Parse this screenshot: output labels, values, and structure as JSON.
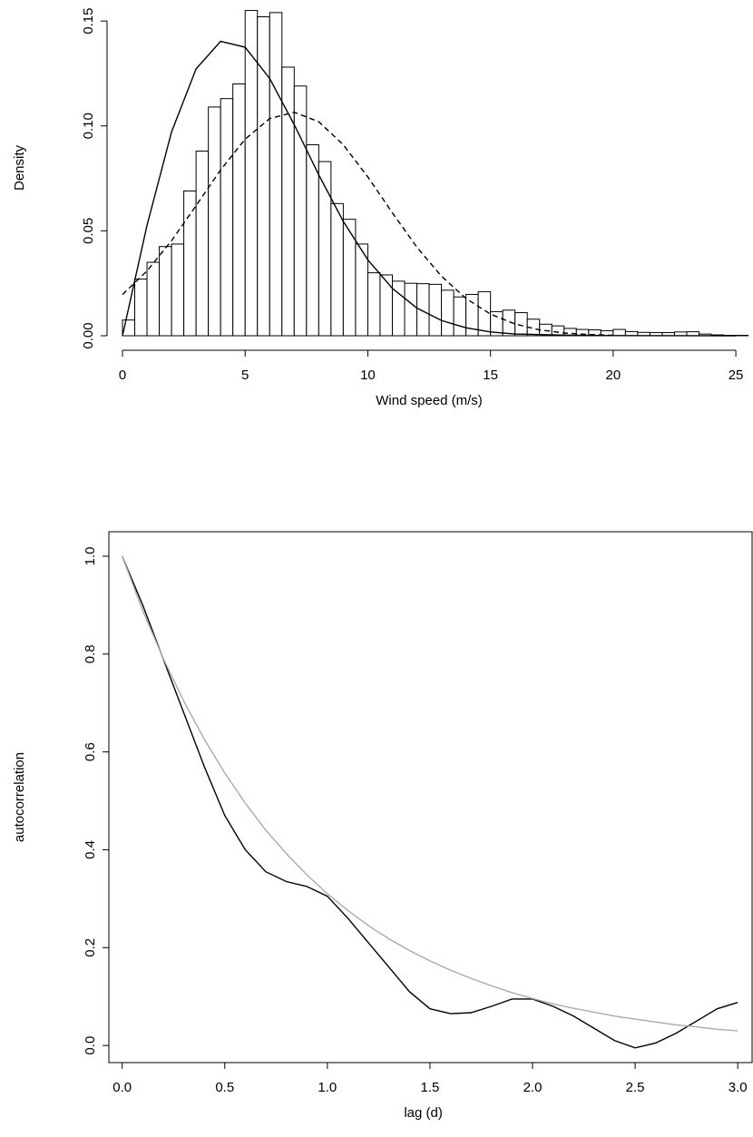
{
  "chart_data": [
    {
      "type": "histogram",
      "xlabel": "Wind speed (m/s)",
      "ylabel": "Density",
      "bins": [
        0,
        0.5,
        1,
        1.5,
        2,
        2.5,
        3,
        3.5,
        4,
        4.5,
        5,
        5.5,
        6,
        6.5,
        7,
        7.5,
        8,
        8.5,
        9,
        9.5,
        10,
        10.5,
        11,
        11.5,
        12,
        12.5,
        13,
        13.5,
        14,
        14.5,
        15,
        15.5,
        16,
        16.5,
        17,
        17.5,
        18,
        18.5,
        19,
        19.5,
        20,
        20.5,
        21,
        21.5,
        22,
        22.5,
        23,
        23.5,
        24,
        24.5,
        25,
        25.5
      ],
      "values": [
        0.0075,
        0.027,
        0.035,
        0.0425,
        0.0437,
        0.069,
        0.088,
        0.109,
        0.113,
        0.12,
        0.155,
        0.152,
        0.154,
        0.128,
        0.119,
        0.091,
        0.083,
        0.063,
        0.0555,
        0.0437,
        0.03,
        0.029,
        0.026,
        0.025,
        0.0248,
        0.0245,
        0.0217,
        0.0185,
        0.0197,
        0.021,
        0.0115,
        0.0122,
        0.011,
        0.0079,
        0.0055,
        0.0047,
        0.0035,
        0.003,
        0.0028,
        0.0024,
        0.003,
        0.002,
        0.0016,
        0.0015,
        0.0015,
        0.0018,
        0.0019,
        0.0008,
        0.0004,
        0.0002,
        0.0002
      ],
      "color": "#ffffff",
      "series": [
        {
          "color": "#000000",
          "linestyle": "solid",
          "x": [
            0,
            1,
            2,
            3,
            4,
            5,
            6,
            7,
            8,
            9,
            10,
            11,
            12,
            13,
            14,
            15,
            16,
            18,
            20,
            25
          ],
          "values": [
            0,
            0.0526,
            0.0971,
            0.1272,
            0.1403,
            0.1375,
            0.1226,
            0.1006,
            0.0767,
            0.0545,
            0.0362,
            0.0226,
            0.0132,
            0.0073,
            0.0038,
            0.0018,
            0.00085,
            0.0003,
            0.0001,
            0
          ]
        },
        {
          "color": "#000000",
          "linestyle": "dashed",
          "x": [
            0,
            1,
            2,
            3,
            4,
            5,
            6,
            7,
            8,
            9,
            10,
            11,
            12,
            13,
            14,
            15,
            16,
            17,
            18,
            19,
            20
          ],
          "values": [
            0.0196,
            0.0309,
            0.0453,
            0.062,
            0.079,
            0.0937,
            0.1035,
            0.1065,
            0.102,
            0.091,
            0.0757,
            0.0586,
            0.0422,
            0.0284,
            0.0178,
            0.0103,
            0.0056,
            0.0028,
            0.0013,
            0.0006,
            0.0002
          ]
        }
      ],
      "xlim": [
        0,
        25.7
      ],
      "ylim": [
        0,
        0.16
      ],
      "xticks": [
        0,
        5,
        10,
        15,
        20,
        25
      ],
      "yticks": [
        {
          "value": 0,
          "label": "0.00"
        },
        {
          "value": 0.05,
          "label": "0.05"
        },
        {
          "value": 0.1,
          "label": "0.10"
        },
        {
          "value": 0.15,
          "label": "0.15"
        }
      ],
      "box": false
    },
    {
      "type": "line",
      "xlabel": "lag (d)",
      "ylabel": "autocorrelation",
      "x": [
        0,
        0.1,
        0.2,
        0.3,
        0.4,
        0.5,
        0.6,
        0.7,
        0.8,
        0.9,
        1,
        1.1,
        1.2,
        1.3,
        1.4,
        1.5,
        1.6,
        1.7,
        1.8,
        1.9,
        2,
        2.1,
        2.2,
        2.3,
        2.4,
        2.5,
        2.6,
        2.7,
        2.8,
        2.9,
        3
      ],
      "series": [
        {
          "color": "#000000",
          "values": [
            1,
            0.9,
            0.79,
            0.68,
            0.57,
            0.47,
            0.4,
            0.355,
            0.335,
            0.325,
            0.305,
            0.26,
            0.21,
            0.16,
            0.11,
            0.075,
            0.065,
            0.067,
            0.08,
            0.095,
            0.095,
            0.08,
            0.06,
            0.035,
            0.01,
            -0.005,
            0.005,
            0.025,
            0.05,
            0.075,
            0.088
          ]
        },
        {
          "color": "#aaaaaa",
          "values": [
            1,
            0.889,
            0.791,
            0.704,
            0.626,
            0.557,
            0.495,
            0.44,
            0.392,
            0.349,
            0.31,
            0.276,
            0.245,
            0.218,
            0.194,
            0.173,
            0.154,
            0.137,
            0.122,
            0.108,
            0.096,
            0.085,
            0.076,
            0.068,
            0.06,
            0.054,
            0.048,
            0.042,
            0.038,
            0.033,
            0.03
          ]
        }
      ],
      "xlim": [
        -0.065,
        3.07
      ],
      "ylim": [
        -0.035,
        1.05
      ],
      "xticks": [
        {
          "value": 0,
          "label": "0.0"
        },
        {
          "value": 0.5,
          "label": "0.5"
        },
        {
          "value": 1,
          "label": "1.0"
        },
        {
          "value": 1.5,
          "label": "1.5"
        },
        {
          "value": 2,
          "label": "2.0"
        },
        {
          "value": 2.5,
          "label": "2.5"
        },
        {
          "value": 3,
          "label": "3.0"
        }
      ],
      "yticks": [
        {
          "value": 0,
          "label": "0.0"
        },
        {
          "value": 0.2,
          "label": "0.2"
        },
        {
          "value": 0.4,
          "label": "0.4"
        },
        {
          "value": 0.6,
          "label": "0.6"
        },
        {
          "value": 0.8,
          "label": "0.8"
        },
        {
          "value": 1,
          "label": "1.0"
        }
      ],
      "box": true
    }
  ]
}
